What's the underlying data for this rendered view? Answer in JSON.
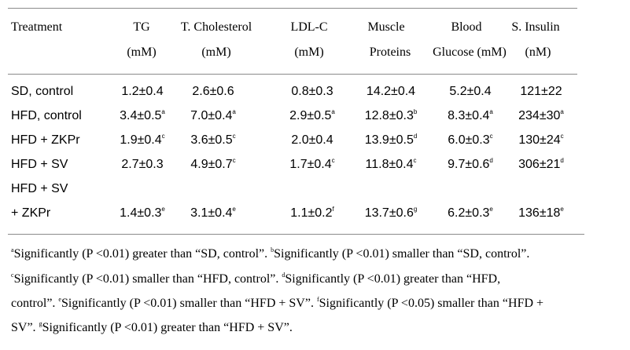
{
  "table": {
    "headers": [
      {
        "line1": "Treatment",
        "line2": ""
      },
      {
        "line1": "TG",
        "line2": "(mM)"
      },
      {
        "line1": "T. Cholesterol",
        "line2": "(mM)"
      },
      {
        "line1": "LDL-C",
        "line2": "(mM)"
      },
      {
        "line1": "Muscle",
        "line2": "Proteins"
      },
      {
        "line1": "Blood",
        "line2": "Glucose (mM)"
      },
      {
        "line1": "S. Insulin",
        "line2": "(nM)"
      }
    ],
    "rows": [
      {
        "treatment": "SD, control",
        "treatment2": "",
        "cells": [
          {
            "v": "1.2±0.4",
            "s": ""
          },
          {
            "v": "2.6±0.6",
            "s": ""
          },
          {
            "v": "0.8±0.3",
            "s": ""
          },
          {
            "v": "14.2±0.4",
            "s": ""
          },
          {
            "v": "5.2±0.4",
            "s": ""
          },
          {
            "v": "121±22",
            "s": ""
          }
        ]
      },
      {
        "treatment": "HFD, control",
        "treatment2": "",
        "cells": [
          {
            "v": "3.4±0.5",
            "s": "a"
          },
          {
            "v": "7.0±0.4",
            "s": "a"
          },
          {
            "v": "2.9±0.5",
            "s": "a"
          },
          {
            "v": "12.8±0.3",
            "s": "b"
          },
          {
            "v": "8.3±0.4",
            "s": "a"
          },
          {
            "v": "234±30",
            "s": "a"
          }
        ]
      },
      {
        "treatment": "HFD + ZKPr",
        "treatment2": "",
        "cells": [
          {
            "v": "1.9±0.4",
            "s": "c"
          },
          {
            "v": "3.6±0.5",
            "s": "c"
          },
          {
            "v": "2.0±0.4",
            "s": ""
          },
          {
            "v": "13.9±0.5",
            "s": "d"
          },
          {
            "v": "6.0±0.3",
            "s": "c"
          },
          {
            "v": "130±24",
            "s": "c"
          }
        ]
      },
      {
        "treatment": "HFD + SV",
        "treatment2": "",
        "cells": [
          {
            "v": "2.7±0.3",
            "s": ""
          },
          {
            "v": "4.9±0.7",
            "s": "c"
          },
          {
            "v": "1.7±0.4",
            "s": "c"
          },
          {
            "v": "11.8±0.4",
            "s": "c"
          },
          {
            "v": "9.7±0.6",
            "s": "d"
          },
          {
            "v": "306±21",
            "s": "d"
          }
        ]
      },
      {
        "treatment": "HFD + SV",
        "treatment2": "+ ZKPr",
        "cells": [
          {
            "v": "1.4±0.3",
            "s": "e"
          },
          {
            "v": "3.1±0.4",
            "s": "e"
          },
          {
            "v": "1.1±0.2",
            "s": "f"
          },
          {
            "v": "13.7±0.6",
            "s": "g"
          },
          {
            "v": "6.2±0.3",
            "s": "e"
          },
          {
            "v": "136±18",
            "s": "e"
          }
        ]
      }
    ]
  },
  "footnotes": {
    "line1": [
      {
        "s": "a",
        "t": "Significantly (P <0.01) greater than “SD, control”. "
      },
      {
        "s": "b",
        "t": "Significantly (P <0.01) smaller than “SD, control”."
      }
    ],
    "line2": [
      {
        "s": "c",
        "t": "Significantly (P <0.01) smaller than “HFD, control”. "
      },
      {
        "s": "d",
        "t": "Significantly (P <0.01) greater than “HFD,"
      }
    ],
    "line3": [
      {
        "s": "",
        "t": "control”. "
      },
      {
        "s": "e",
        "t": "Significantly (P <0.01) smaller than “HFD + SV”. "
      },
      {
        "s": "f",
        "t": "Significantly (P <0.05) smaller than “HFD +"
      }
    ],
    "line4": [
      {
        "s": "",
        "t": "SV”. "
      },
      {
        "s": "g",
        "t": "Significantly (P <0.01) greater than “HFD + SV”."
      }
    ]
  }
}
